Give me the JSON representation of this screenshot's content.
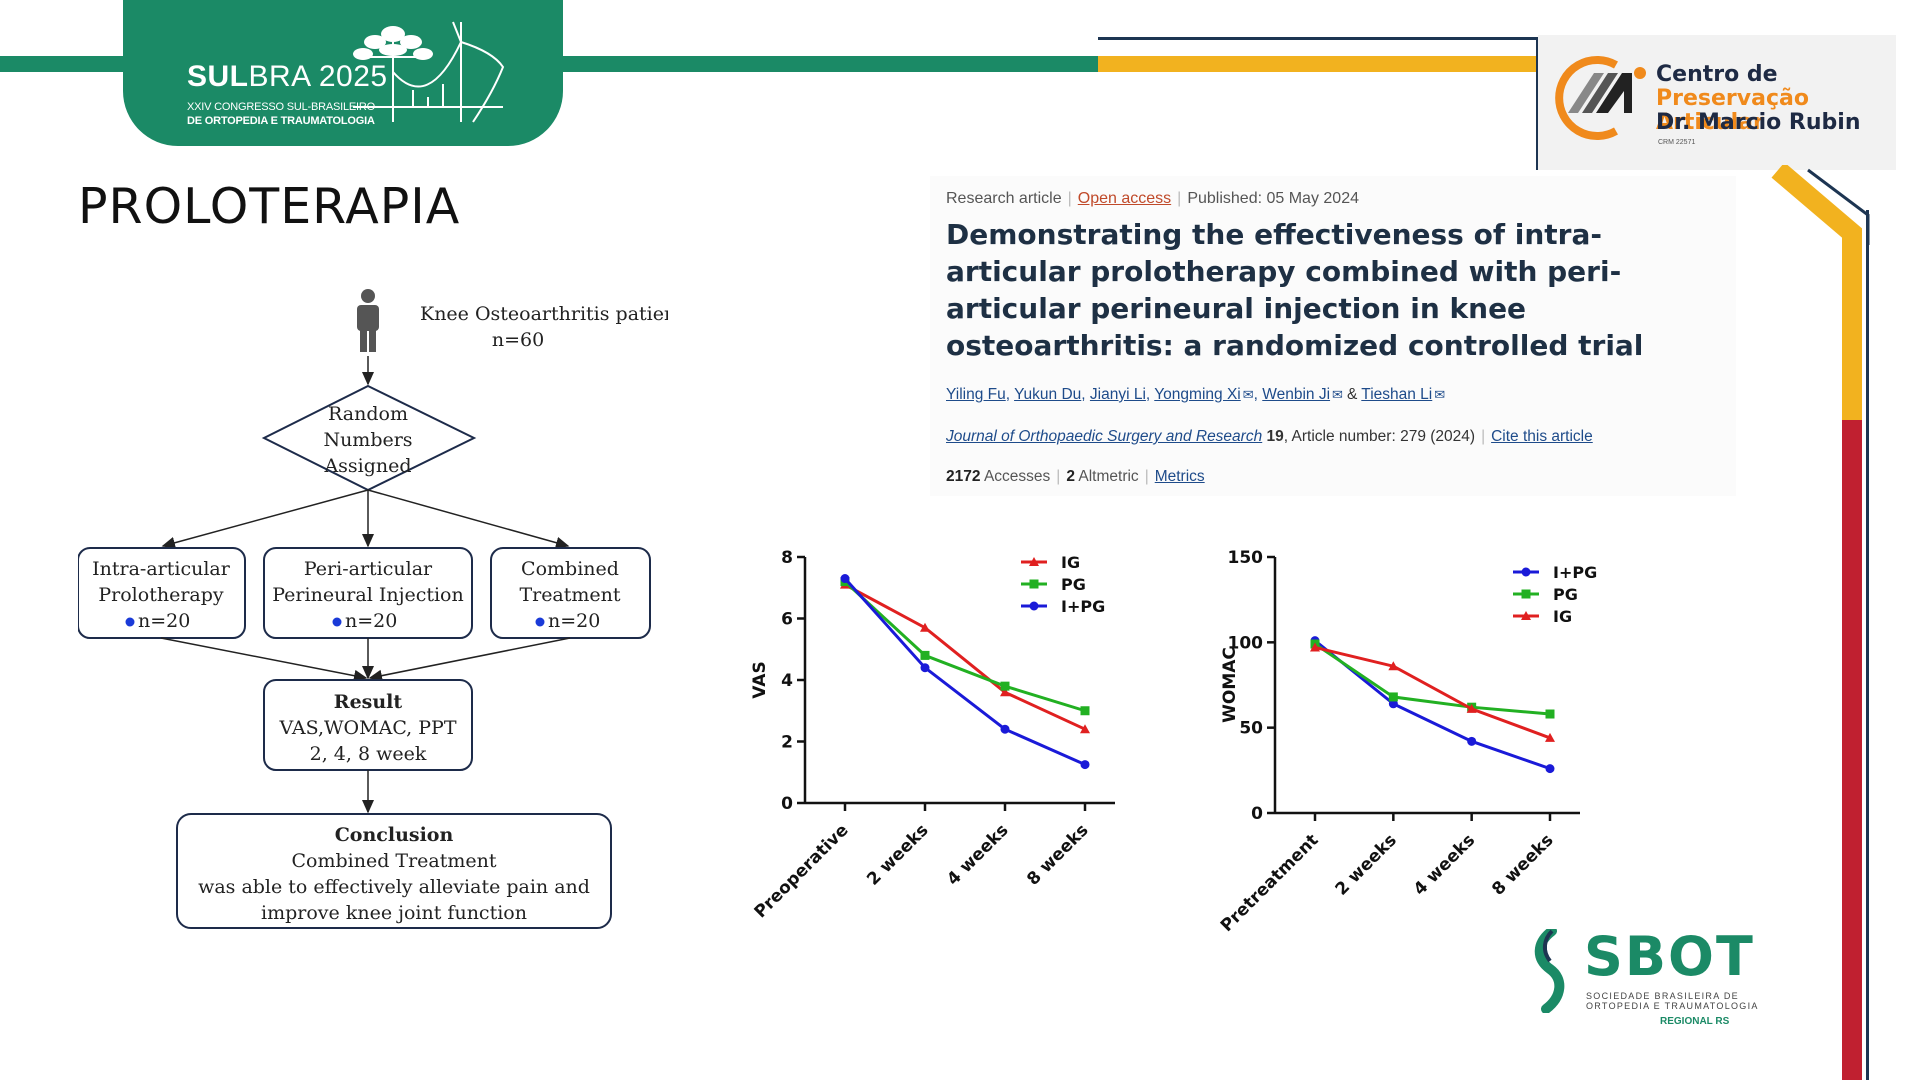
{
  "header": {
    "event_title_bold": "SUL",
    "event_title_rest": "BRA 2025",
    "event_subtitle_1": "XXIV CONGRESSO SUL-BRASILEIRO",
    "event_subtitle_2": "DE ORTOPEDIA E TRAUMATOLOGIA",
    "clinic_line_1": "Centro de",
    "clinic_line_2": "Preservação Articular",
    "clinic_line_3": "Dr. Marcio Rubin",
    "clinic_crm": "CRM 22571",
    "colors": {
      "green": "#1b8a66",
      "gold": "#f2b21f",
      "navy": "#1d3552",
      "red": "#c02030",
      "orange": "#f08a1c"
    }
  },
  "slide": {
    "title": "PROLOTERAPIA"
  },
  "flowchart": {
    "patients_label": "Knee Osteoarthritis patients",
    "patients_n": "n=60",
    "random_l1": "Random",
    "random_l2": "Numbers",
    "random_l3": "Assigned",
    "group1_l1": "Intra-articular",
    "group1_l2": "Prolotherapy",
    "group1_n": "n=20",
    "group2_l1": "Peri-articular",
    "group2_l2": "Perineural Injection",
    "group2_n": "n=20",
    "group3_l1": "Combined",
    "group3_l2": "Treatment",
    "group3_n": "n=20",
    "result_l1": "Result",
    "result_l2": "VAS,WOMAC, PPT",
    "result_l3": "2, 4, 8 week",
    "conclusion_l1": "Conclusion",
    "conclusion_l2": "Combined Treatment",
    "conclusion_l3": "was able to effectively alleviate pain and",
    "conclusion_l4": "improve knee joint function"
  },
  "article": {
    "type": "Research article",
    "access": "Open access",
    "published": "Published: 05 May 2024",
    "title": "Demonstrating the effectiveness of intra-articular prolotherapy combined with peri-articular perineural injection in knee osteoarthritis: a randomized controlled trial",
    "author_1": "Yiling Fu",
    "author_2": "Yukun Du",
    "author_3": "Jianyi Li",
    "author_4": "Yongming Xi",
    "author_5": "Wenbin Ji",
    "author_6": "Tieshan Li",
    "journal": "Journal of Orthopaedic Surgery and Research",
    "volume": "19",
    "article_number": ", Article number: 279 (2024)",
    "cite": "Cite this article",
    "accesses_value": "2172",
    "accesses_label": "Accesses",
    "altmetric_value": "2",
    "altmetric_label": "Altmetric",
    "metrics_link": "Metrics"
  },
  "chart_data": [
    {
      "type": "line",
      "title": "",
      "xlabel": "",
      "ylabel": "VAS",
      "categories": [
        "Preoperative",
        "2 weeks",
        "4 weeks",
        "8 weeks"
      ],
      "ylim": [
        0,
        8
      ],
      "yticks": [
        0,
        2,
        4,
        6,
        8
      ],
      "legend_position": "top-right",
      "series": [
        {
          "name": "IG",
          "color": "#e02020",
          "marker": "triangle",
          "values": [
            7.1,
            5.7,
            3.6,
            2.4
          ]
        },
        {
          "name": "PG",
          "color": "#22b022",
          "marker": "square",
          "values": [
            7.2,
            4.8,
            3.8,
            3.0
          ]
        },
        {
          "name": "I+PG",
          "color": "#1a1ad8",
          "marker": "circle",
          "values": [
            7.3,
            4.4,
            2.4,
            1.25
          ]
        }
      ]
    },
    {
      "type": "line",
      "title": "",
      "xlabel": "",
      "ylabel": "WOMAC",
      "categories": [
        "Pretreatment",
        "2 weeks",
        "4 weeks",
        "8 weeks"
      ],
      "ylim": [
        0,
        150
      ],
      "yticks": [
        0,
        50,
        100,
        150
      ],
      "legend_position": "top-right",
      "series": [
        {
          "name": "I+PG",
          "color": "#1a1ad8",
          "marker": "circle",
          "values": [
            101,
            64,
            42,
            26
          ]
        },
        {
          "name": "PG",
          "color": "#22b022",
          "marker": "square",
          "values": [
            99,
            68,
            62,
            58
          ]
        },
        {
          "name": "IG",
          "color": "#e02020",
          "marker": "triangle",
          "values": [
            97,
            86,
            61,
            44
          ]
        }
      ]
    }
  ],
  "footer": {
    "sbot_word": "SBOT",
    "sbot_sub_1": "SOCIEDADE BRASILEIRA DE",
    "sbot_sub_2": "ORTOPEDIA E TRAUMATOLOGIA",
    "sbot_regional": "REGIONAL RS"
  }
}
